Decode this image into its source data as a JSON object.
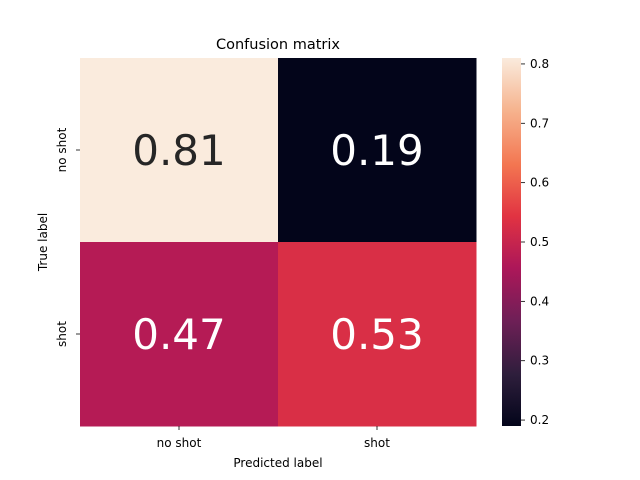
{
  "chart_data": {
    "type": "heatmap",
    "title": "Confusion matrix",
    "xlabel": "Predicted label",
    "ylabel": "True label",
    "x_categories": [
      "no shot",
      "shot"
    ],
    "y_categories": [
      "no shot",
      "shot"
    ],
    "values": [
      [
        0.81,
        0.19
      ],
      [
        0.47,
        0.53
      ]
    ],
    "value_labels": [
      [
        "0.81",
        "0.19"
      ],
      [
        "0.47",
        "0.53"
      ]
    ],
    "colorbar": {
      "range": [
        0.19,
        0.81
      ],
      "ticks": [
        0.2,
        0.3,
        0.4,
        0.5,
        0.6,
        0.7,
        0.8
      ],
      "tick_labels": [
        "0.2",
        "0.3",
        "0.4",
        "0.5",
        "0.6",
        "0.7",
        "0.8"
      ],
      "colormap": "rocket"
    }
  }
}
